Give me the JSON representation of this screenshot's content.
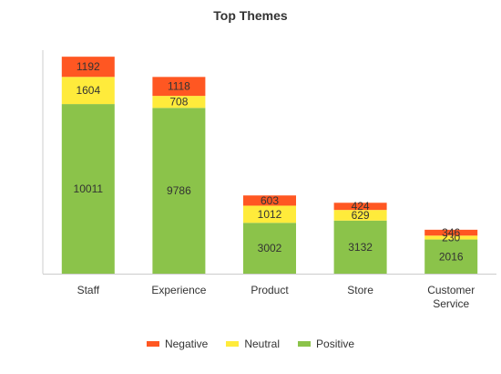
{
  "chart_data": {
    "type": "bar",
    "stacked": true,
    "title": "Top Themes",
    "xlabel": "",
    "ylabel": "",
    "ylim": [
      0,
      14000
    ],
    "grid": false,
    "legend_position": "bottom",
    "categories": [
      "Staff",
      "Experience",
      "Product",
      "Store",
      "Customer Service"
    ],
    "series": [
      {
        "name": "Positive",
        "color": "#8bc34a",
        "values": [
          10011,
          9786,
          3002,
          3132,
          2016
        ]
      },
      {
        "name": "Neutral",
        "color": "#ffeb3b",
        "values": [
          1604,
          708,
          1012,
          629,
          230
        ]
      },
      {
        "name": "Negative",
        "color": "#ff5722",
        "values": [
          1192,
          1118,
          603,
          424,
          346
        ]
      }
    ],
    "legend_order": [
      "Negative",
      "Neutral",
      "Positive"
    ]
  }
}
